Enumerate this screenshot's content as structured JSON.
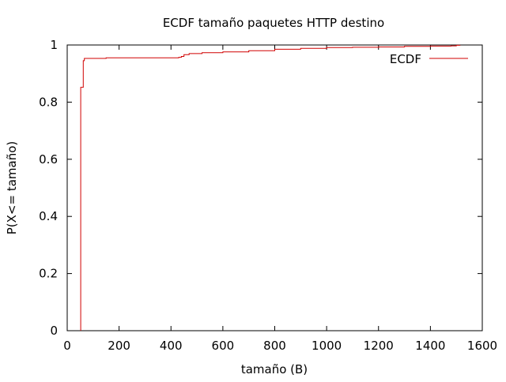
{
  "chart_data": {
    "type": "line",
    "title": "ECDF tamaño paquetes HTTP destino",
    "xlabel": "tamaño (B)",
    "ylabel": "P(X<= tamaño)",
    "xlim": [
      0,
      1600
    ],
    "ylim": [
      0,
      1
    ],
    "x_ticks": [
      "0",
      "200",
      "400",
      "600",
      "800",
      "1000",
      "1200",
      "1400",
      "1600"
    ],
    "y_ticks": [
      "0",
      "0.2",
      "0.4",
      "0.6",
      "0.8",
      "1"
    ],
    "grid": false,
    "legend_position": "top-right",
    "series": [
      {
        "name": "ECDF",
        "color": "#d00000",
        "step": true,
        "points": [
          [
            52,
            0.0
          ],
          [
            52,
            0.852
          ],
          [
            62,
            0.852
          ],
          [
            62,
            0.945
          ],
          [
            66,
            0.945
          ],
          [
            66,
            0.953
          ],
          [
            150,
            0.953
          ],
          [
            150,
            0.955
          ],
          [
            420,
            0.955
          ],
          [
            430,
            0.957
          ],
          [
            440,
            0.96
          ],
          [
            450,
            0.966
          ],
          [
            470,
            0.97
          ],
          [
            520,
            0.973
          ],
          [
            600,
            0.976
          ],
          [
            700,
            0.98
          ],
          [
            800,
            0.985
          ],
          [
            900,
            0.988
          ],
          [
            1000,
            0.991
          ],
          [
            1100,
            0.992
          ],
          [
            1200,
            0.993
          ],
          [
            1300,
            0.995
          ],
          [
            1400,
            0.996
          ],
          [
            1480,
            0.997
          ],
          [
            1500,
            0.999
          ],
          [
            1514,
            1.0
          ]
        ]
      }
    ]
  }
}
